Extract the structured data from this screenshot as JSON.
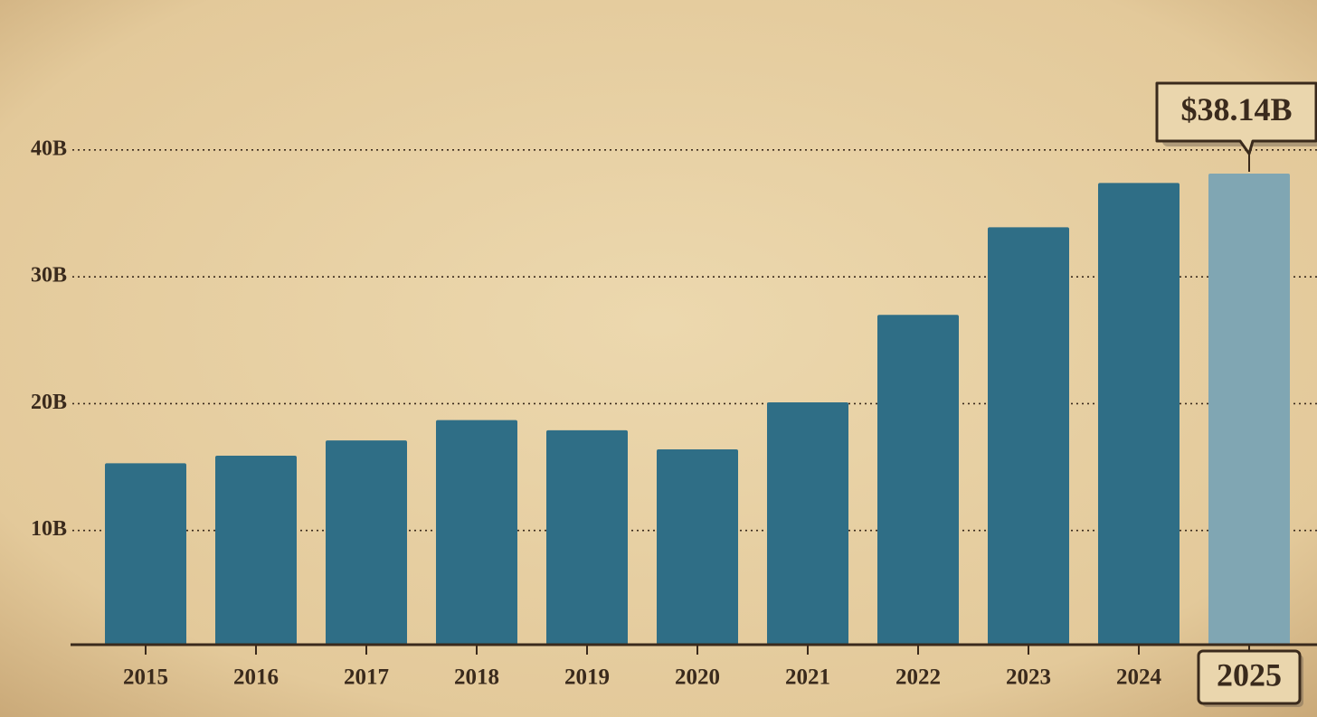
{
  "chart_data": {
    "type": "bar",
    "categories": [
      "2015",
      "2016",
      "2017",
      "2018",
      "2019",
      "2020",
      "2021",
      "2022",
      "2023",
      "2024",
      "2025"
    ],
    "values": [
      15.3,
      15.9,
      17.1,
      18.7,
      17.9,
      16.4,
      20.1,
      27.0,
      33.9,
      37.4,
      38.14
    ],
    "value_labels": [
      null,
      null,
      null,
      null,
      null,
      null,
      null,
      null,
      null,
      null,
      "$38.14B"
    ],
    "colors": [
      "#2f6e86",
      "#2f6e86",
      "#2f6e86",
      "#2f6e86",
      "#2f6e86",
      "#2f6e86",
      "#2f6e86",
      "#2f6e86",
      "#2f6e86",
      "#2f6e86",
      "#80a6b3"
    ],
    "ylim": [
      1,
      42
    ],
    "yticks": [
      {
        "value": 10,
        "label": "10B"
      },
      {
        "value": 20,
        "label": "20B"
      },
      {
        "value": 30,
        "label": "30B"
      },
      {
        "value": 40,
        "label": "40B"
      }
    ],
    "grid": true
  }
}
